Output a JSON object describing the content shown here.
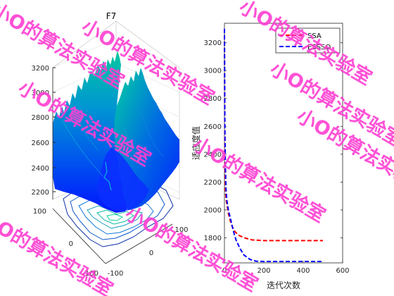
{
  "chart_data": [
    {
      "type": "surface",
      "title": "F7",
      "xlabel": "",
      "ylabel": "",
      "zlabel": "",
      "x_ticks": [
        "-100",
        "0",
        "100"
      ],
      "y_ticks": [
        "-100",
        "0",
        "100"
      ],
      "z_ticks": [
        "2200",
        "2400",
        "2600",
        "2800",
        "3000",
        "3200"
      ],
      "xlim": [
        -100,
        100
      ],
      "ylim": [
        -100,
        100
      ],
      "zlim": [
        2150,
        3200
      ],
      "colormap": "winter",
      "contour_floor": true
    },
    {
      "type": "line",
      "title": "",
      "xlabel": "迭代次数",
      "ylabel": "适应度值",
      "xlim": [
        0,
        600
      ],
      "ylim": [
        1620,
        3340
      ],
      "x_ticks": [
        "0",
        "200",
        "400",
        "600"
      ],
      "y_ticks": [
        "1800",
        "2000",
        "2200",
        "2400",
        "2600",
        "2800",
        "3000",
        "3200"
      ],
      "legend_position": "top-right",
      "series": [
        {
          "name": "SSA",
          "color": "#ff0000",
          "dash": "dashed",
          "x": [
            0,
            2,
            5,
            10,
            20,
            30,
            40,
            50,
            70,
            100,
            140,
            200,
            300,
            400,
            500
          ],
          "y": [
            3300,
            2350,
            2130,
            2060,
            1975,
            1920,
            1880,
            1850,
            1820,
            1800,
            1785,
            1780,
            1780,
            1780,
            1780
          ]
        },
        {
          "name": "ESSSO",
          "color": "#0000ff",
          "dash": "dashed",
          "x": [
            0,
            2,
            5,
            8,
            12,
            20,
            30,
            40,
            50,
            60,
            80,
            100,
            130,
            160,
            200,
            300,
            400,
            500
          ],
          "y": [
            3300,
            2600,
            2300,
            2150,
            2070,
            2000,
            1940,
            1880,
            1825,
            1780,
            1720,
            1675,
            1645,
            1632,
            1630,
            1630,
            1630,
            1630
          ]
        }
      ]
    }
  ],
  "watermark": {
    "text": "小O的算法实验室",
    "color": "#ff3fd2"
  }
}
